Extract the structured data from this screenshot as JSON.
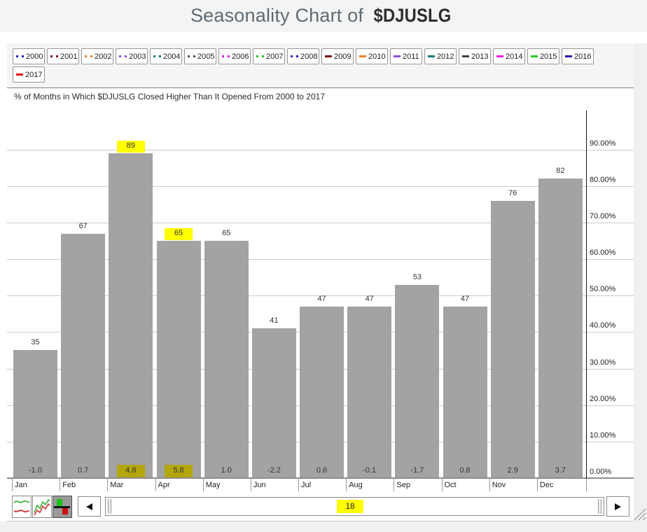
{
  "title": {
    "prefix": "Seasonality Chart of",
    "symbol": "$DJUSLG"
  },
  "subtitle": "% of Months in Which $DJUSLG Closed Higher Than It Opened From 2000 to 2017",
  "years": [
    {
      "label": "2000",
      "color": "#2020c0",
      "line_style": "dotted"
    },
    {
      "label": "2001",
      "color": "#801010",
      "line_style": "dotted"
    },
    {
      "label": "2002",
      "color": "#f08020",
      "line_style": "dotted"
    },
    {
      "label": "2003",
      "color": "#9050e0",
      "line_style": "dotted"
    },
    {
      "label": "2004",
      "color": "#107878",
      "line_style": "dotted"
    },
    {
      "label": "2005",
      "color": "#505050",
      "line_style": "dotted"
    },
    {
      "label": "2006",
      "color": "#e020e0",
      "line_style": "dotted"
    },
    {
      "label": "2007",
      "color": "#30b830",
      "line_style": "dotted"
    },
    {
      "label": "2008",
      "color": "#2020c0",
      "line_style": "dotted"
    },
    {
      "label": "2009",
      "color": "#801010",
      "line_style": "solid"
    },
    {
      "label": "2010",
      "color": "#f08020",
      "line_style": "solid"
    },
    {
      "label": "2011",
      "color": "#9050e0",
      "line_style": "solid"
    },
    {
      "label": "2012",
      "color": "#107878",
      "line_style": "solid"
    },
    {
      "label": "2013",
      "color": "#404040",
      "line_style": "solid"
    },
    {
      "label": "2014",
      "color": "#e818e8",
      "line_style": "solid"
    },
    {
      "label": "2015",
      "color": "#20d020",
      "line_style": "solid"
    },
    {
      "label": "2016",
      "color": "#2818b0",
      "line_style": "solid"
    },
    {
      "label": "2017",
      "color": "#e81010",
      "line_style": "solid"
    }
  ],
  "chart_data": {
    "type": "bar",
    "title": "% of Months in Which $DJUSLG Closed Higher Than It Opened From 2000 to 2017",
    "categories": [
      "Jan",
      "Feb",
      "Mar",
      "Apr",
      "May",
      "Jun",
      "Jul",
      "Aug",
      "Sep",
      "Oct",
      "Nov",
      "Dec"
    ],
    "series": [
      {
        "name": "pct_of_months_closed_higher",
        "values": [
          35,
          67,
          89,
          65,
          65,
          41,
          47,
          47,
          53,
          47,
          76,
          82
        ]
      },
      {
        "name": "avg_pct_change",
        "values": [
          -1.0,
          0.7,
          4.8,
          5.8,
          1.0,
          -2.2,
          0.6,
          -0.1,
          -1.7,
          0.8,
          2.9,
          3.7
        ],
        "labels": [
          "-1.0",
          "0.7",
          "4.8",
          "5.8",
          "1.0",
          "-2.2",
          "0.6",
          "-0.1",
          "-1.7",
          "0.8",
          "2.9",
          "3.7"
        ]
      }
    ],
    "highlighted_categories": [
      "Mar",
      "Apr"
    ],
    "y_tick_values": [
      90,
      80,
      70,
      60,
      50,
      40,
      30,
      20,
      10,
      0
    ],
    "y_ticks": [
      "90.00%",
      "80.00%",
      "70.00%",
      "60.00%",
      "50.00%",
      "40.00%",
      "30.00%",
      "20.00%",
      "10.00%",
      "0.00%"
    ],
    "ylim": [
      0,
      100
    ],
    "grid": true,
    "y_axis_side": "right",
    "bar_color": "#a3a3a3",
    "label_highlight_color": "#ffff00",
    "bar_label_highlight_color": "#b3a60a"
  },
  "toolbar": {
    "chart_type_icons": [
      {
        "name": "smooth-line-chart-icon",
        "selected": false
      },
      {
        "name": "jagged-line-chart-icon",
        "selected": false
      },
      {
        "name": "bar-chart-icon",
        "selected": true
      }
    ],
    "scrollbar": {
      "value": "18"
    }
  }
}
